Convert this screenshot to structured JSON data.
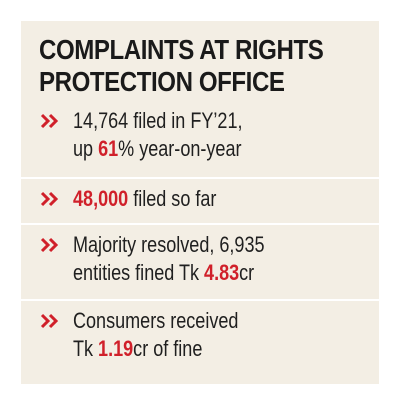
{
  "title": {
    "line1": "COMPLAINTS AT RIGHTS",
    "line2": "PROTECTION OFFICE"
  },
  "items": [
    {
      "l1": "14,764 filed in FY’21,",
      "l2a": "up ",
      "l2b": "61",
      "l2c": "% year-on-year"
    },
    {
      "a": "48,000",
      "b": " filed so far"
    },
    {
      "l1": "Majority resolved, 6,935",
      "l2a": "entities fined  Tk ",
      "l2b": "4.83",
      "l2c": "cr"
    },
    {
      "l1": "Consumers received",
      "l2a": "Tk ",
      "l2b": "1.19",
      "l2c": "cr of fine"
    }
  ],
  "icons": [
    "double-chevron-icon",
    "double-chevron-icon",
    "double-chevron-icon",
    "double-chevron-icon"
  ],
  "colors": {
    "background": "#f3eee4",
    "accent": "#d0202a",
    "text": "#1f1f1f"
  }
}
